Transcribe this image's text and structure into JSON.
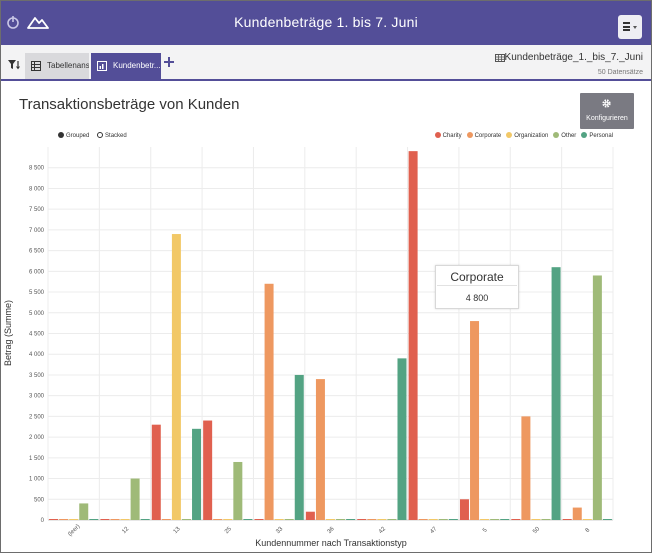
{
  "header": {
    "title": "Kundenbeträge 1. bis 7. Juni",
    "icons": [
      "power-icon",
      "mountain-logo-icon",
      "menu-icon"
    ]
  },
  "tabs": [
    {
      "label": "Tabellenansicht",
      "icon": "table-icon",
      "active": false
    },
    {
      "label": "Kundenbetr...",
      "icon": "chart-icon",
      "active": true
    }
  ],
  "dataset": {
    "name": "Kundenbeträge_1._bis_7._Juni",
    "count": "50 Datensätze"
  },
  "panel": {
    "title": "Transaktionsbeträge von Kunden",
    "config_label": "Konfigurieren"
  },
  "mode_toggle": {
    "grouped": "Grouped",
    "stacked": "Stacked",
    "selected": "grouped"
  },
  "colors": {
    "accent": "#534e98",
    "Charity": "#e0604f",
    "Corporate": "#ee9860",
    "Organization": "#f2c867",
    "Other": "#9fba78",
    "Personal": "#53a383"
  },
  "tooltip": {
    "title": "Corporate",
    "value": "4 800"
  },
  "chart_data": {
    "type": "bar",
    "xlabel": "Kundennummer nach Transaktionstyp",
    "ylabel": "Betrag (Summe)",
    "ylim": [
      0,
      9000
    ],
    "yticks": [
      0,
      500,
      1000,
      1500,
      2000,
      2500,
      3000,
      3500,
      4000,
      4500,
      5000,
      5500,
      6000,
      6500,
      7000,
      7500,
      8000,
      8500
    ],
    "ytick_labels": [
      "0",
      "500",
      "1 000",
      "1 500",
      "2 000",
      "2 500",
      "3 000",
      "3 500",
      "4 000",
      "4 500",
      "5 000",
      "5 500",
      "6 000",
      "6 500",
      "7 000",
      "7 500",
      "8 000",
      "8 500"
    ],
    "grid": true,
    "legend_position": "top-right",
    "categories": [
      "(leer)",
      "12",
      "13",
      "25",
      "33",
      "36",
      "42",
      "47",
      "5",
      "50",
      "8"
    ],
    "series": [
      {
        "name": "Charity",
        "values": [
          0,
          0,
          2300,
          2400,
          0,
          200,
          0,
          8900,
          500,
          0,
          0
        ]
      },
      {
        "name": "Corporate",
        "values": [
          0,
          0,
          0,
          0,
          5700,
          3400,
          0,
          0,
          4800,
          2500,
          300
        ]
      },
      {
        "name": "Organization",
        "values": [
          0,
          0,
          6900,
          0,
          0,
          0,
          0,
          0,
          0,
          0,
          0
        ]
      },
      {
        "name": "Other",
        "values": [
          400,
          1000,
          0,
          1400,
          0,
          0,
          0,
          0,
          0,
          0,
          5900
        ]
      },
      {
        "name": "Personal",
        "values": [
          0,
          0,
          2200,
          0,
          3500,
          0,
          3900,
          0,
          0,
          6100,
          0
        ]
      }
    ]
  }
}
